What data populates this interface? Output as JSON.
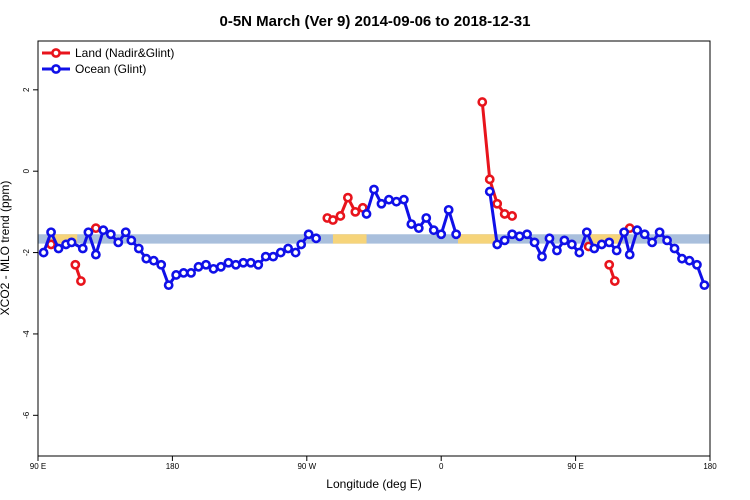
{
  "chart_data": {
    "type": "line",
    "title": "0-5N March (Ver 9)   2014-09-06 to 2018-12-31",
    "xlabel": "Longitude (deg E)",
    "ylabel": "XCO2 - MLO trend (ppm)",
    "xlim": [
      0,
      360
    ],
    "ylim": [
      -7,
      3.2
    ],
    "x_ticks": [
      {
        "value": 0,
        "label": "90 E"
      },
      {
        "value": 72,
        "label": "180"
      },
      {
        "value": 144,
        "label": "90 W"
      },
      {
        "value": 216,
        "label": "0"
      },
      {
        "value": 288,
        "label": "90 E"
      },
      {
        "value": 360,
        "label": "180"
      }
    ],
    "y_ticks": [
      {
        "value": 2,
        "label": "2"
      },
      {
        "value": 0,
        "label": "0"
      },
      {
        "value": -2,
        "label": "-2"
      },
      {
        "value": -4,
        "label": "-4"
      },
      {
        "value": -6,
        "label": "-6"
      }
    ],
    "legend": {
      "position": "top-left"
    },
    "band": {
      "y_range": [
        -1.78,
        -1.55
      ],
      "color": "#a9bfdc",
      "land_color": "#f6d47a",
      "land_segments": [
        [
          7,
          21
        ],
        [
          158,
          176
        ],
        [
          225,
          246
        ],
        [
          295,
          313
        ]
      ]
    },
    "series": [
      {
        "name": "Land (Nadir&Glint)",
        "color": "#e8141c",
        "segments": [
          [
            [
              7,
              -1.8
            ]
          ],
          [
            [
              20,
              -2.3
            ],
            [
              23,
              -2.7
            ]
          ],
          [
            [
              31,
              -1.4
            ]
          ],
          [
            [
              155,
              -1.15
            ],
            [
              158,
              -1.2
            ],
            [
              162,
              -1.1
            ],
            [
              166,
              -0.65
            ],
            [
              170,
              -1.0
            ],
            [
              174,
              -0.9
            ]
          ],
          [
            [
              238,
              1.7
            ],
            [
              242,
              -0.2
            ],
            [
              246,
              -0.8
            ],
            [
              250,
              -1.05
            ],
            [
              254,
              -1.1
            ]
          ],
          [
            [
              295,
              -1.85
            ]
          ],
          [
            [
              306,
              -2.3
            ],
            [
              309,
              -2.7
            ]
          ],
          [
            [
              317,
              -1.4
            ]
          ]
        ]
      },
      {
        "name": "Ocean (Glint)",
        "color": "#1010e8",
        "segments": [
          [
            [
              3,
              -2.0
            ],
            [
              7,
              -1.5
            ],
            [
              11,
              -1.9
            ],
            [
              15,
              -1.8
            ],
            [
              18,
              -1.75
            ],
            [
              24,
              -1.9
            ],
            [
              27,
              -1.5
            ],
            [
              31,
              -2.05
            ],
            [
              35,
              -1.45
            ],
            [
              39,
              -1.55
            ],
            [
              43,
              -1.75
            ],
            [
              47,
              -1.5
            ],
            [
              50,
              -1.7
            ],
            [
              54,
              -1.9
            ],
            [
              58,
              -2.15
            ],
            [
              62,
              -2.2
            ],
            [
              66,
              -2.3
            ],
            [
              70,
              -2.8
            ],
            [
              74,
              -2.55
            ],
            [
              78,
              -2.5
            ],
            [
              82,
              -2.5
            ],
            [
              86,
              -2.35
            ],
            [
              90,
              -2.3
            ],
            [
              94,
              -2.4
            ],
            [
              98,
              -2.35
            ],
            [
              102,
              -2.25
            ],
            [
              106,
              -2.3
            ],
            [
              110,
              -2.25
            ],
            [
              114,
              -2.25
            ],
            [
              118,
              -2.3
            ],
            [
              122,
              -2.1
            ],
            [
              126,
              -2.1
            ],
            [
              130,
              -2.0
            ],
            [
              134,
              -1.9
            ],
            [
              138,
              -2.0
            ],
            [
              141,
              -1.8
            ],
            [
              145,
              -1.55
            ],
            [
              149,
              -1.65
            ]
          ],
          [
            [
              176,
              -1.05
            ],
            [
              180,
              -0.45
            ],
            [
              184,
              -0.8
            ],
            [
              188,
              -0.7
            ],
            [
              192,
              -0.75
            ],
            [
              196,
              -0.7
            ],
            [
              200,
              -1.3
            ],
            [
              204,
              -1.4
            ],
            [
              208,
              -1.15
            ],
            [
              212,
              -1.45
            ],
            [
              216,
              -1.55
            ],
            [
              220,
              -0.95
            ],
            [
              224,
              -1.55
            ]
          ],
          [
            [
              242,
              -0.5
            ],
            [
              246,
              -1.8
            ],
            [
              250,
              -1.7
            ],
            [
              254,
              -1.55
            ],
            [
              258,
              -1.6
            ],
            [
              262,
              -1.55
            ],
            [
              266,
              -1.75
            ],
            [
              270,
              -2.1
            ],
            [
              274,
              -1.65
            ],
            [
              278,
              -1.95
            ],
            [
              282,
              -1.7
            ],
            [
              286,
              -1.8
            ],
            [
              290,
              -2.0
            ],
            [
              294,
              -1.5
            ],
            [
              298,
              -1.9
            ],
            [
              302,
              -1.8
            ],
            [
              306,
              -1.75
            ],
            [
              310,
              -1.95
            ],
            [
              314,
              -1.5
            ],
            [
              317,
              -2.05
            ],
            [
              321,
              -1.45
            ],
            [
              325,
              -1.55
            ],
            [
              329,
              -1.75
            ],
            [
              333,
              -1.5
            ],
            [
              337,
              -1.7
            ],
            [
              341,
              -1.9
            ],
            [
              345,
              -2.15
            ],
            [
              349,
              -2.2
            ],
            [
              353,
              -2.3
            ],
            [
              357,
              -2.8
            ]
          ]
        ]
      }
    ]
  }
}
